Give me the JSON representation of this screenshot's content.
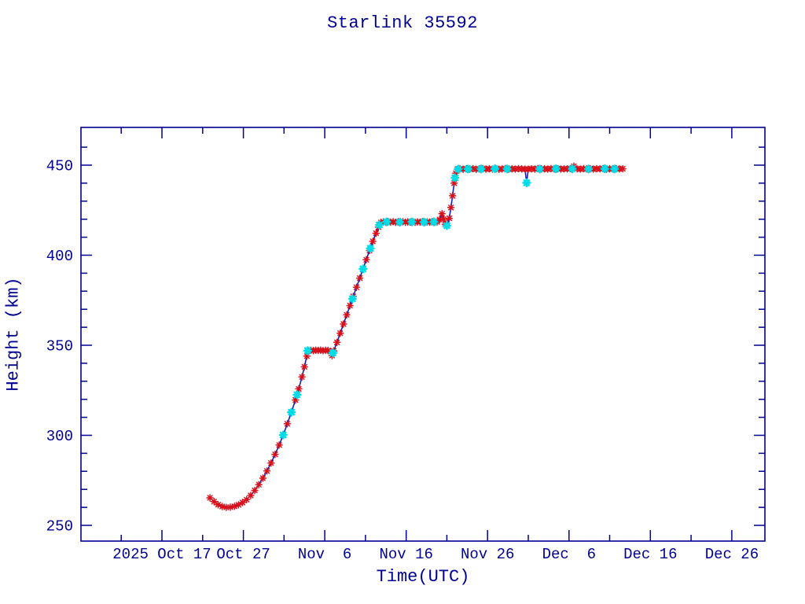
{
  "title": "Starlink 35592",
  "axes": {
    "xlabel": "Time(UTC)",
    "ylabel": "Height (km)"
  },
  "chart_data": {
    "type": "line",
    "title": "Starlink 35592",
    "xlabel": "Time(UTC)",
    "ylabel": "Height (km)",
    "x_axis": {
      "day0_label": "2025 Oct 17",
      "tick_labels": [
        "2025 Oct 17",
        "Oct 27",
        "Nov  6",
        "Nov 16",
        "Nov 26",
        "Dec  6",
        "Dec 16",
        "Dec 26"
      ],
      "major_tick_days": [
        0,
        10,
        20,
        30,
        40,
        50,
        60,
        70
      ],
      "minor_tick_days": [
        -5,
        5,
        15,
        25,
        35,
        45,
        55,
        65
      ],
      "range_days": [
        -9.95,
        74.05
      ]
    },
    "y_axis": {
      "major_ticks": [
        250,
        300,
        350,
        400,
        450
      ],
      "minor_step_km": 10,
      "range_km": [
        241,
        471
      ]
    },
    "colors": {
      "axis_and_text": "#000090",
      "line": "#1820A8",
      "marker_primary_red": "#D8101C",
      "marker_secondary_cyan": "#00DDE6",
      "background": "#FFFFFF"
    },
    "series": [
      {
        "name": "orbit-height-red-asterisks",
        "points": [
          [
            5.9,
            265.3
          ],
          [
            6.4,
            263.2
          ],
          [
            6.9,
            261.5
          ],
          [
            7.4,
            260.5
          ],
          [
            7.9,
            260.0
          ],
          [
            8.4,
            260.1
          ],
          [
            8.9,
            260.6
          ],
          [
            9.4,
            261.4
          ],
          [
            9.9,
            262.7
          ],
          [
            10.4,
            264.3
          ],
          [
            10.9,
            266.6
          ],
          [
            11.4,
            269.4
          ],
          [
            11.9,
            272.6
          ],
          [
            12.4,
            276.2
          ],
          [
            12.9,
            280.2
          ],
          [
            13.4,
            284.6
          ],
          [
            13.9,
            289.4
          ],
          [
            14.4,
            294.6
          ],
          [
            14.9,
            300.2
          ],
          [
            15.4,
            306.4
          ],
          [
            15.9,
            312.8
          ],
          [
            16.4,
            319.6
          ],
          [
            16.8,
            325.8
          ],
          [
            17.2,
            332.4
          ],
          [
            17.5,
            338.0
          ],
          [
            17.8,
            344.0
          ],
          [
            18.0,
            346.8
          ],
          [
            18.3,
            347.2
          ],
          [
            18.6,
            347.0
          ],
          [
            18.9,
            347.3
          ],
          [
            19.2,
            347.1
          ],
          [
            19.5,
            347.3
          ],
          [
            19.8,
            347.0
          ],
          [
            20.1,
            347.2
          ],
          [
            20.4,
            347.1
          ],
          [
            20.7,
            346.5
          ],
          [
            20.9,
            344.3
          ],
          [
            21.1,
            346.9
          ],
          [
            21.5,
            351.6
          ],
          [
            21.9,
            356.7
          ],
          [
            22.3,
            361.8
          ],
          [
            22.7,
            366.9
          ],
          [
            23.1,
            372.0
          ],
          [
            23.5,
            377.1
          ],
          [
            23.9,
            382.2
          ],
          [
            24.3,
            387.3
          ],
          [
            24.7,
            392.4
          ],
          [
            25.1,
            397.5
          ],
          [
            25.5,
            402.6
          ],
          [
            25.9,
            407.7
          ],
          [
            26.3,
            412.2
          ],
          [
            26.6,
            415.6
          ],
          [
            26.9,
            418.2
          ],
          [
            27.2,
            418.5
          ],
          [
            27.5,
            418.3
          ],
          [
            27.8,
            418.6
          ],
          [
            28.1,
            418.4
          ],
          [
            28.4,
            418.6
          ],
          [
            28.7,
            418.3
          ],
          [
            29.0,
            418.5
          ],
          [
            29.3,
            418.4
          ],
          [
            29.6,
            418.6
          ],
          [
            29.9,
            418.3
          ],
          [
            30.2,
            418.5
          ],
          [
            30.5,
            418.4
          ],
          [
            30.8,
            418.6
          ],
          [
            31.1,
            418.3
          ],
          [
            31.4,
            418.5
          ],
          [
            31.7,
            418.4
          ],
          [
            32.0,
            418.6
          ],
          [
            32.3,
            418.3
          ],
          [
            32.6,
            418.5
          ],
          [
            32.9,
            418.4
          ],
          [
            33.2,
            418.6
          ],
          [
            33.5,
            418.3
          ],
          [
            33.8,
            418.5
          ],
          [
            34.1,
            419.8
          ],
          [
            34.4,
            423.0
          ],
          [
            34.6,
            420.0
          ],
          [
            34.8,
            417.2
          ],
          [
            35.0,
            416.4
          ],
          [
            35.3,
            420.5
          ],
          [
            35.5,
            426.5
          ],
          [
            35.7,
            433.0
          ],
          [
            35.9,
            440.0
          ],
          [
            36.1,
            445.5
          ],
          [
            36.3,
            447.6
          ],
          [
            36.6,
            447.9
          ],
          [
            37.0,
            447.7
          ],
          [
            37.4,
            448.0
          ],
          [
            37.8,
            447.8
          ],
          [
            38.2,
            448.1
          ],
          [
            38.6,
            447.7
          ],
          [
            39.0,
            447.9
          ],
          [
            39.4,
            448.1
          ],
          [
            39.8,
            447.8
          ],
          [
            40.2,
            448.0
          ],
          [
            40.6,
            447.8
          ],
          [
            41.0,
            448.1
          ],
          [
            41.4,
            447.7
          ],
          [
            41.8,
            447.9
          ],
          [
            42.2,
            448.1
          ],
          [
            42.6,
            447.8
          ],
          [
            43.0,
            448.0
          ],
          [
            43.4,
            447.8
          ],
          [
            43.8,
            448.1
          ],
          [
            44.2,
            447.9
          ],
          [
            44.6,
            447.8
          ],
          [
            44.8,
            440.2
          ],
          [
            45.0,
            447.8
          ],
          [
            45.4,
            448.0
          ],
          [
            45.8,
            447.8
          ],
          [
            46.2,
            448.1
          ],
          [
            46.6,
            447.9
          ],
          [
            47.0,
            448.0
          ],
          [
            47.4,
            447.8
          ],
          [
            47.8,
            448.1
          ],
          [
            48.2,
            447.9
          ],
          [
            48.6,
            448.0
          ],
          [
            49.0,
            447.8
          ],
          [
            49.4,
            448.0
          ],
          [
            49.8,
            447.9
          ],
          [
            50.2,
            448.1
          ],
          [
            50.6,
            449.4
          ],
          [
            51.0,
            448.0
          ],
          [
            51.4,
            447.8
          ],
          [
            51.8,
            448.1
          ],
          [
            52.2,
            447.9
          ],
          [
            52.6,
            448.0
          ],
          [
            53.0,
            447.8
          ],
          [
            53.4,
            448.0
          ],
          [
            53.8,
            447.9
          ],
          [
            54.2,
            448.1
          ],
          [
            54.6,
            447.8
          ],
          [
            55.0,
            448.0
          ],
          [
            55.4,
            447.9
          ],
          [
            55.8,
            448.1
          ],
          [
            56.2,
            447.9
          ],
          [
            56.6,
            448.0
          ]
        ]
      },
      {
        "name": "orbit-height-cyan-markers",
        "points": [
          [
            14.9,
            300.2
          ],
          [
            15.9,
            312.8
          ],
          [
            16.6,
            322.5
          ],
          [
            17.9,
            347.0
          ],
          [
            21.0,
            345.8
          ],
          [
            23.4,
            375.8
          ],
          [
            24.7,
            392.4
          ],
          [
            25.6,
            403.8
          ],
          [
            26.7,
            416.8
          ],
          [
            27.6,
            418.5
          ],
          [
            29.2,
            418.4
          ],
          [
            30.7,
            418.5
          ],
          [
            32.2,
            418.4
          ],
          [
            33.4,
            418.5
          ],
          [
            35.0,
            416.4
          ],
          [
            36.0,
            443.0
          ],
          [
            36.4,
            447.8
          ],
          [
            37.6,
            447.9
          ],
          [
            39.2,
            447.9
          ],
          [
            40.9,
            448.0
          ],
          [
            42.4,
            447.9
          ],
          [
            44.8,
            440.2
          ],
          [
            46.4,
            447.9
          ],
          [
            48.4,
            448.0
          ],
          [
            50.4,
            448.0
          ],
          [
            52.4,
            447.9
          ],
          [
            54.4,
            448.0
          ],
          [
            55.6,
            447.9
          ]
        ]
      }
    ]
  }
}
